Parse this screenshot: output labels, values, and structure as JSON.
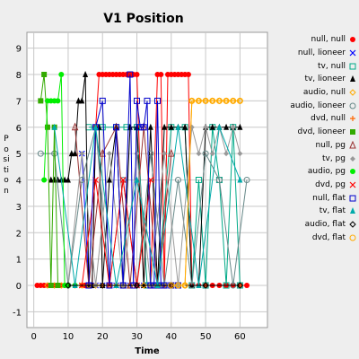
{
  "chart_data": {
    "type": "line",
    "title": "V1 Position",
    "xlabel": "Time",
    "ylabel": "Position",
    "xlim": [
      -2,
      68
    ],
    "ylim": [
      -1.6,
      9.6
    ],
    "xticks": [
      0,
      10,
      20,
      30,
      40,
      50,
      60
    ],
    "yticks": [
      -1,
      0,
      1,
      2,
      3,
      4,
      5,
      6,
      7,
      8,
      9
    ],
    "grid": true,
    "legend_position": "right",
    "series": [
      {
        "name": "null, null",
        "color": "#ff0000",
        "marker": "dot",
        "x": [
          1,
          2,
          3,
          4,
          5,
          6,
          7,
          8,
          9,
          10,
          12,
          14,
          15,
          16,
          17,
          18,
          19,
          20,
          21,
          22,
          23,
          24,
          25,
          26,
          27,
          28,
          29,
          30,
          32,
          34,
          36,
          37,
          38,
          39,
          40,
          41,
          42,
          43,
          44,
          45,
          46,
          48,
          50,
          52,
          54,
          56,
          58,
          60,
          62
        ],
        "y": [
          0,
          0,
          0,
          0,
          0,
          0,
          0,
          0,
          0,
          0,
          0,
          0,
          0,
          0,
          0,
          6,
          8,
          8,
          8,
          8,
          8,
          8,
          8,
          8,
          8,
          8,
          8,
          8,
          0,
          0,
          8,
          8,
          0,
          8,
          8,
          8,
          8,
          8,
          8,
          8,
          0,
          0,
          0,
          0,
          0,
          0,
          0,
          0,
          0
        ]
      },
      {
        "name": "null, lioneer",
        "color": "#0000ff",
        "marker": "x",
        "x": [
          14,
          16,
          18,
          20,
          22,
          24,
          26,
          28,
          30,
          32,
          34,
          36,
          38,
          40
        ],
        "y": [
          5,
          0,
          0,
          0,
          0,
          0,
          0,
          0,
          0,
          0,
          0,
          0,
          0,
          0
        ]
      },
      {
        "name": "tv, null",
        "color": "#00aa88",
        "marker": "square-open",
        "x": [
          16,
          20,
          24,
          27,
          30,
          33,
          36,
          40,
          44,
          46,
          48,
          50,
          52,
          54,
          56,
          58,
          60
        ],
        "y": [
          6,
          6,
          6,
          6,
          6,
          0,
          0,
          6,
          6,
          0,
          4,
          0,
          6,
          4,
          0,
          6,
          0
        ]
      },
      {
        "name": "tv, lioneer",
        "color": "#000000",
        "marker": "triangle",
        "x": [
          5,
          6,
          7,
          8,
          9,
          10,
          11,
          12,
          13,
          14,
          15,
          16,
          17,
          18,
          19,
          20,
          22,
          24,
          26,
          28,
          30,
          32,
          34,
          36,
          38,
          40,
          42,
          44,
          46,
          48,
          50,
          52,
          54,
          56,
          58,
          60
        ],
        "y": [
          4,
          4,
          4,
          4,
          4,
          4,
          5,
          5,
          7,
          7,
          8,
          0,
          0,
          6,
          6,
          0,
          4,
          6,
          0,
          6,
          6,
          0,
          6,
          0,
          6,
          6,
          6,
          6,
          0,
          0,
          6,
          6,
          6,
          6,
          6,
          6
        ]
      },
      {
        "name": "audio, null",
        "color": "#ffaa00",
        "marker": "diamond-open",
        "x": [
          4,
          6,
          8,
          10,
          12,
          14,
          16,
          18,
          20,
          22,
          24,
          26,
          28,
          30,
          32,
          34,
          36,
          38,
          40,
          42,
          44,
          46,
          48,
          50,
          52,
          54,
          56,
          58,
          60
        ],
        "y": [
          0,
          0,
          0,
          0,
          0,
          0,
          0,
          0,
          0,
          0,
          0,
          0,
          0,
          0,
          0,
          0,
          0,
          0,
          0,
          0,
          0,
          7,
          7,
          7,
          7,
          7,
          7,
          7,
          7
        ]
      },
      {
        "name": "audio, lioneer",
        "color": "#668888",
        "marker": "circle-open",
        "x": [
          2,
          6,
          10,
          14,
          18,
          22,
          26,
          30,
          34,
          38,
          42,
          46,
          50,
          54,
          58,
          62
        ],
        "y": [
          5,
          5,
          0,
          4,
          6,
          0,
          4,
          0,
          5,
          0,
          4,
          0,
          5,
          4,
          0,
          4
        ]
      },
      {
        "name": "dvd, null",
        "color": "#ff6600",
        "marker": "plus",
        "x": [
          10,
          20,
          30,
          40,
          50,
          60
        ],
        "y": [
          0,
          0,
          0,
          0,
          0,
          0
        ]
      },
      {
        "name": "dvd, lioneer",
        "color": "#33aa00",
        "marker": "square",
        "x": [
          2,
          3,
          4,
          5,
          6,
          7
        ],
        "y": [
          7,
          8,
          6,
          0,
          6,
          0
        ]
      },
      {
        "name": "null, pg",
        "color": "#993333",
        "marker": "triangle-open",
        "x": [
          12,
          16,
          20,
          24,
          28,
          32,
          36,
          40
        ],
        "y": [
          6,
          0,
          5,
          6,
          0,
          6,
          0,
          5
        ]
      },
      {
        "name": "tv, pg",
        "color": "#999999",
        "marker": "diamond",
        "x": [
          10,
          14,
          18,
          22,
          26,
          30,
          34,
          38,
          42,
          46,
          48,
          50,
          52,
          54,
          56,
          58,
          60
        ],
        "y": [
          0,
          5,
          0,
          5,
          0,
          5,
          0,
          5,
          0,
          6,
          5,
          6,
          5,
          6,
          5,
          6,
          5
        ]
      },
      {
        "name": "audio, pg",
        "color": "#00ee00",
        "marker": "dot",
        "x": [
          3,
          4,
          5,
          6,
          7,
          8,
          9,
          10,
          12
        ],
        "y": [
          4,
          7,
          7,
          7,
          7,
          8,
          0,
          0,
          0
        ]
      },
      {
        "name": "dvd, pg",
        "color": "#ff0000",
        "marker": "x",
        "x": [
          14,
          18,
          22,
          26,
          30,
          34
        ],
        "y": [
          0,
          4,
          0,
          4,
          0,
          4
        ]
      },
      {
        "name": "null, flat",
        "color": "#0000cc",
        "marker": "square-open",
        "x": [
          16,
          18,
          20,
          22,
          24,
          26,
          28,
          29,
          30,
          31,
          32,
          33,
          34,
          35,
          36,
          37,
          38,
          40,
          42
        ],
        "y": [
          0,
          6,
          7,
          0,
          6,
          0,
          8,
          0,
          7,
          6,
          6,
          7,
          0,
          0,
          7,
          0,
          0,
          0,
          0
        ]
      },
      {
        "name": "tv, flat",
        "color": "#00aaaa",
        "marker": "triangle",
        "x": [
          6,
          12,
          18,
          24,
          30,
          36,
          42,
          48,
          54,
          60
        ],
        "y": [
          6,
          0,
          6,
          0,
          4,
          0,
          6,
          0,
          6,
          4
        ]
      },
      {
        "name": "audio, flat",
        "color": "#000000",
        "marker": "diamond-open",
        "x": [
          10,
          20,
          30,
          40,
          50,
          60
        ],
        "y": [
          0,
          0,
          0,
          0,
          0,
          0
        ]
      },
      {
        "name": "dvd, flat",
        "color": "#ffaa00",
        "marker": "circle-open",
        "x": [
          40,
          42,
          44,
          46,
          48,
          50,
          52,
          54,
          56,
          58,
          60
        ],
        "y": [
          0,
          0,
          0,
          7,
          7,
          7,
          7,
          7,
          7,
          7,
          7
        ]
      }
    ]
  }
}
